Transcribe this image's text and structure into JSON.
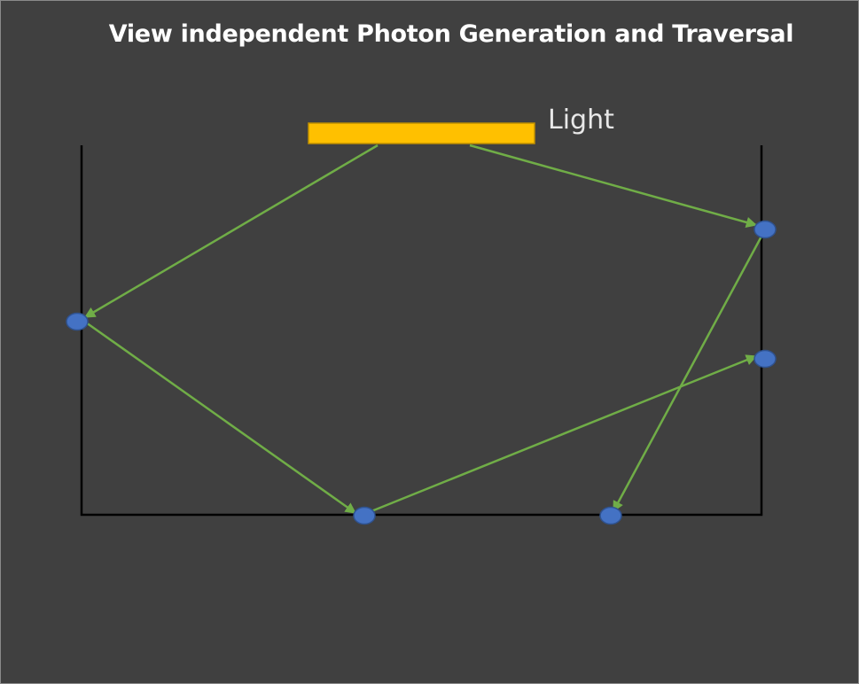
{
  "title": "View independent Photon Generation and Traversal",
  "light_label": "Light",
  "colors": {
    "background": "#404040",
    "light_fill": "#ffc000",
    "light_stroke": "#c09000",
    "ray": "#70ad47",
    "photon_fill": "#4472c4",
    "photon_stroke": "#2f528f",
    "box_line": "#000000",
    "title_text": "#ffffff"
  }
}
